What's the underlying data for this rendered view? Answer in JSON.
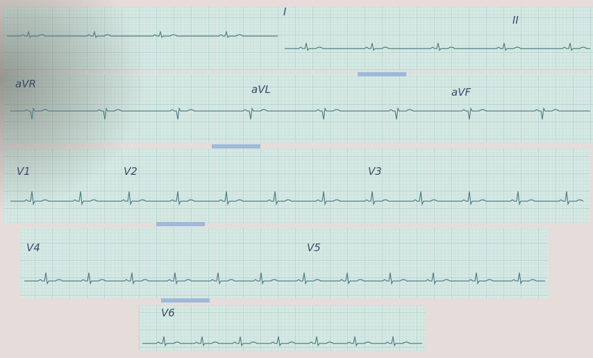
{
  "leads": {
    "lead_i": "I",
    "lead_ii": "II",
    "avr": "aVR",
    "avl": "aVL",
    "avf": "aVF",
    "v1": "V1",
    "v2": "V2",
    "v3": "V3",
    "v4": "V4",
    "v5": "V5",
    "v6": "V6"
  }
}
